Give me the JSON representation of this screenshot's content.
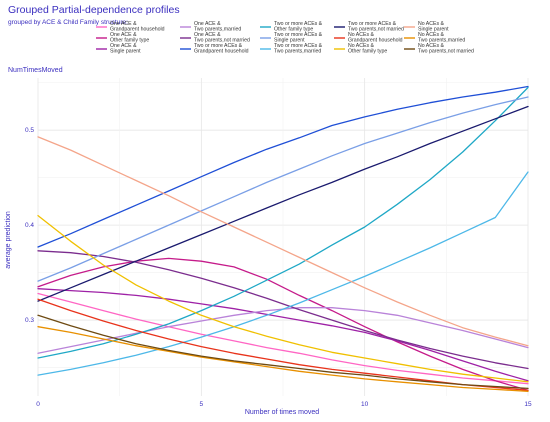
{
  "title": "Grouped Partial-dependence profiles",
  "subtitle": "grouped by ACE  & Child Family structure:",
  "panel_label": "NumTimesMoved",
  "chart_data": {
    "type": "line",
    "title": "Grouped Partial-dependence profiles",
    "subtitle": "grouped by ACE  & Child Family structure:",
    "xlabel": "Number of times moved",
    "ylabel": "average prediction",
    "xlim": [
      0,
      15
    ],
    "ylim": [
      0.22,
      0.555
    ],
    "xticks": [
      0,
      5,
      10,
      15
    ],
    "yticks": [
      0.3,
      0.4,
      0.5
    ],
    "grid": true,
    "legend_position": "top",
    "x": [
      0,
      1,
      2,
      3,
      4,
      5,
      6,
      7,
      8,
      9,
      10,
      11,
      12,
      13,
      14,
      15
    ],
    "series": [
      {
        "name": "One ACE & Grandparent household",
        "color": "#ff66c4",
        "values": [
          0.328,
          0.319,
          0.31,
          0.301,
          0.293,
          0.285,
          0.278,
          0.271,
          0.265,
          0.258,
          0.252,
          0.247,
          0.243,
          0.239,
          0.236,
          0.233
        ]
      },
      {
        "name": "One ACE & Other family type",
        "color": "#c51b8a",
        "values": [
          0.335,
          0.347,
          0.356,
          0.362,
          0.365,
          0.362,
          0.356,
          0.343,
          0.326,
          0.31,
          0.293,
          0.277,
          0.262,
          0.248,
          0.236,
          0.226
        ]
      },
      {
        "name": "One ACE & Single parent",
        "color": "#9e21a6",
        "values": [
          0.333,
          0.331,
          0.329,
          0.326,
          0.322,
          0.317,
          0.312,
          0.306,
          0.3,
          0.294,
          0.287,
          0.278,
          0.268,
          0.257,
          0.246,
          0.236
        ]
      },
      {
        "name": "One ACE & Two parents,married",
        "color": "#b983d9",
        "values": [
          0.265,
          0.272,
          0.279,
          0.286,
          0.293,
          0.299,
          0.305,
          0.31,
          0.313,
          0.313,
          0.31,
          0.305,
          0.297,
          0.289,
          0.28,
          0.271
        ]
      },
      {
        "name": "One ACE & Two parents,not married",
        "color": "#7b2d8e",
        "values": [
          0.373,
          0.371,
          0.367,
          0.361,
          0.353,
          0.344,
          0.334,
          0.323,
          0.311,
          0.3,
          0.289,
          0.279,
          0.27,
          0.262,
          0.255,
          0.249
        ]
      },
      {
        "name": "Two or more ACEs & Grandparent household",
        "color": "#1f4fd6",
        "values": [
          0.377,
          0.391,
          0.406,
          0.421,
          0.436,
          0.451,
          0.466,
          0.48,
          0.492,
          0.505,
          0.514,
          0.522,
          0.529,
          0.535,
          0.54,
          0.546
        ]
      },
      {
        "name": "Two or more ACEs & Other family type",
        "color": "#1fa8c6",
        "values": [
          0.26,
          0.267,
          0.275,
          0.285,
          0.296,
          0.31,
          0.325,
          0.342,
          0.359,
          0.379,
          0.398,
          0.422,
          0.448,
          0.477,
          0.51,
          0.545
        ]
      },
      {
        "name": "Two or more ACEs & Single parent",
        "color": "#7a9fe6",
        "values": [
          0.341,
          0.355,
          0.37,
          0.385,
          0.4,
          0.415,
          0.43,
          0.445,
          0.459,
          0.473,
          0.486,
          0.497,
          0.508,
          0.518,
          0.527,
          0.535
        ]
      },
      {
        "name": "Two or more ACEs & Two parents,married",
        "color": "#4db8e8",
        "values": [
          0.242,
          0.248,
          0.255,
          0.263,
          0.272,
          0.282,
          0.293,
          0.305,
          0.318,
          0.332,
          0.346,
          0.361,
          0.376,
          0.392,
          0.408,
          0.456
        ]
      },
      {
        "name": "Two or more ACEs & Two parents,not married",
        "color": "#1a1a6e",
        "values": [
          0.32,
          0.334,
          0.348,
          0.362,
          0.376,
          0.39,
          0.404,
          0.418,
          0.432,
          0.445,
          0.459,
          0.472,
          0.486,
          0.499,
          0.512,
          0.525
        ]
      },
      {
        "name": "No ACEs & Grandparent household",
        "color": "#e8331b",
        "values": [
          0.322,
          0.31,
          0.299,
          0.289,
          0.28,
          0.272,
          0.265,
          0.259,
          0.253,
          0.248,
          0.244,
          0.24,
          0.236,
          0.232,
          0.229,
          0.226
        ]
      },
      {
        "name": "No ACEs & Other family type",
        "color": "#f0c000",
        "values": [
          0.41,
          0.383,
          0.358,
          0.337,
          0.32,
          0.305,
          0.293,
          0.283,
          0.274,
          0.266,
          0.26,
          0.254,
          0.248,
          0.243,
          0.239,
          0.235
        ]
      },
      {
        "name": "No ACEs & Single parent",
        "color": "#f4a58a",
        "values": [
          0.493,
          0.479,
          0.463,
          0.447,
          0.431,
          0.414,
          0.398,
          0.382,
          0.366,
          0.35,
          0.334,
          0.319,
          0.305,
          0.292,
          0.282,
          0.273
        ]
      },
      {
        "name": "No ACEs & Two parents,married",
        "color": "#e89000",
        "values": [
          0.293,
          0.287,
          0.28,
          0.273,
          0.267,
          0.261,
          0.256,
          0.251,
          0.246,
          0.242,
          0.238,
          0.235,
          0.232,
          0.229,
          0.227,
          0.225
        ]
      },
      {
        "name": "No ACEs & Two parents,not married",
        "color": "#6e4a12",
        "values": [
          0.305,
          0.294,
          0.284,
          0.275,
          0.268,
          0.262,
          0.257,
          0.253,
          0.249,
          0.245,
          0.242,
          0.238,
          0.235,
          0.232,
          0.23,
          0.228
        ]
      }
    ]
  },
  "legend_columns": [
    [
      "One ACE &\nGrandparent household",
      "One ACE &\nOther family type",
      "One ACE &\nSingle parent"
    ],
    [
      "One ACE &\nTwo parents,married",
      "One ACE &\nTwo parents,not married",
      "Two or more ACEs &\nGrandparent household"
    ],
    [
      "Two or more ACEs &\nOther family type",
      "Two or more ACEs &\nSingle parent",
      "Two or more ACEs &\nTwo parents,married"
    ],
    [
      "Two or more ACEs &\nTwo parents,not married",
      "No ACEs &\nGrandparent household",
      "No ACEs &\nOther family type"
    ],
    [
      "No ACEs &\nSingle parent",
      "No ACEs &\nTwo parents,married",
      "No ACEs &\nTwo parents,not married"
    ]
  ]
}
